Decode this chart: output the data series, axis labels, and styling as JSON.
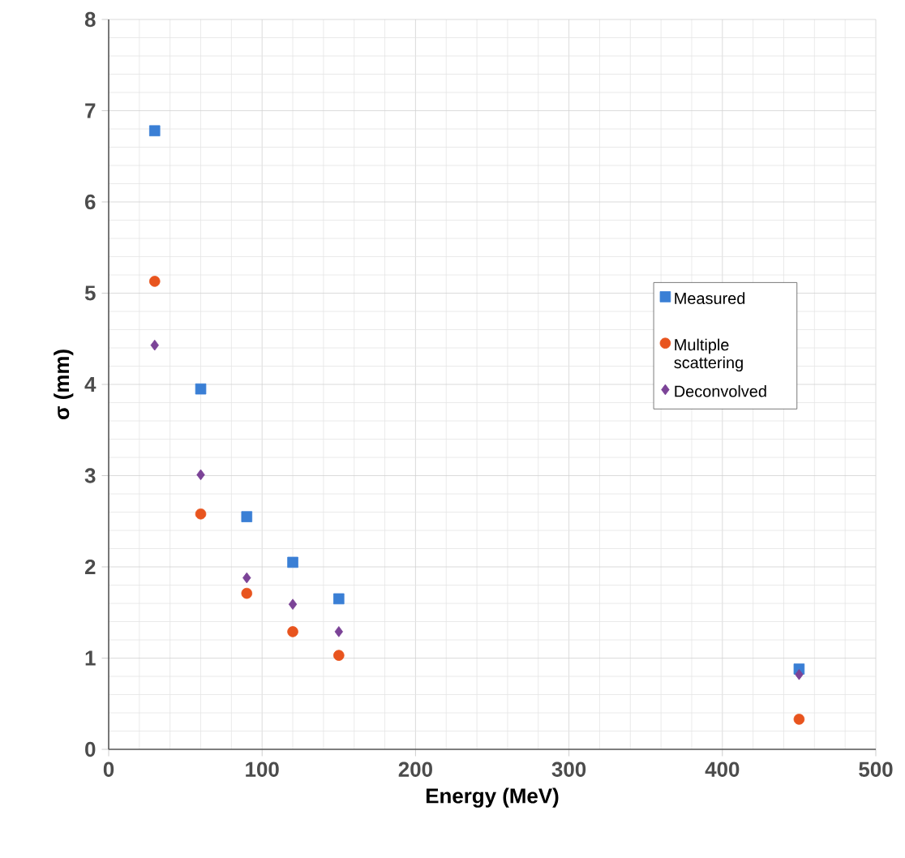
{
  "chart_data": {
    "type": "scatter",
    "xlabel": "Energy (MeV)",
    "ylabel": "σ (mm)",
    "x": [
      30,
      60,
      90,
      120,
      150,
      450
    ],
    "series": [
      {
        "name": "Measured",
        "color": "#3a7fd5",
        "marker": "square",
        "values": [
          6.78,
          3.95,
          2.55,
          2.05,
          1.65,
          0.88
        ]
      },
      {
        "name": "Multiple scattering",
        "color": "#e8541e",
        "marker": "circle",
        "values": [
          5.13,
          2.58,
          1.71,
          1.29,
          1.03,
          0.33
        ]
      },
      {
        "name": "Deconvolved",
        "color": "#7b4397",
        "marker": "diamond",
        "values": [
          4.43,
          3.01,
          1.88,
          1.59,
          1.29,
          0.82
        ]
      }
    ],
    "xlim": [
      0,
      500
    ],
    "ylim": [
      0,
      8
    ],
    "xticks": [
      0,
      100,
      200,
      300,
      400,
      500
    ],
    "yticks": [
      0,
      1,
      2,
      3,
      4,
      5,
      6,
      7,
      8
    ],
    "grid": true,
    "legend": "right"
  }
}
